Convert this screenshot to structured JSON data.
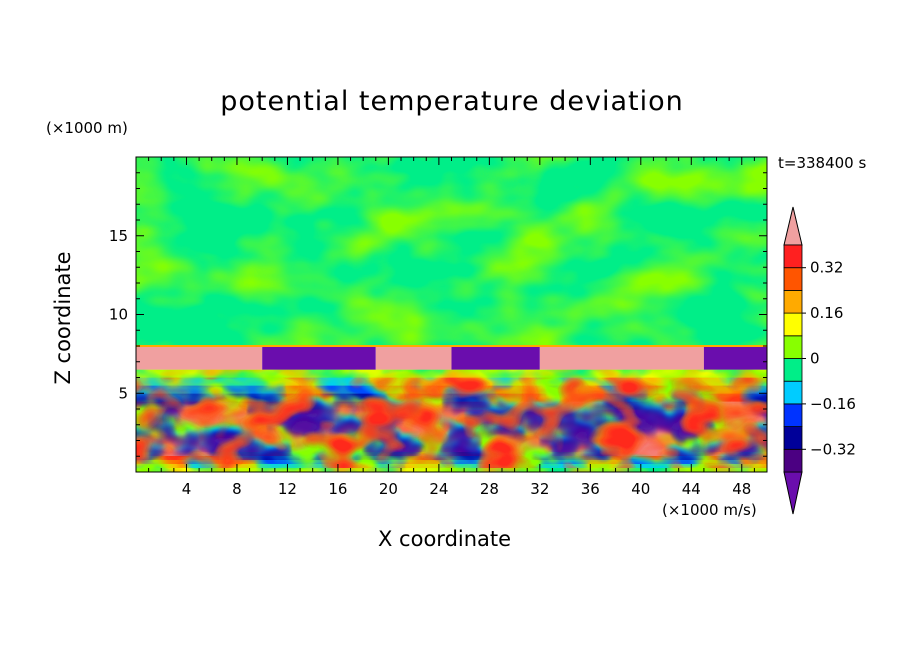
{
  "chart_data": {
    "type": "heatmap",
    "title": "potential temperature deviation",
    "xlabel": "X coordinate",
    "ylabel": "Z coordinate",
    "x_unit": "(×1000 m/s)",
    "y_unit": "(×1000 m)",
    "time_label": "t=338400 s",
    "xlim": [
      0,
      50
    ],
    "ylim": [
      0,
      20
    ],
    "x_ticks": [
      4,
      8,
      12,
      16,
      20,
      24,
      28,
      32,
      36,
      40,
      44,
      48
    ],
    "y_ticks": [
      5,
      10,
      15
    ],
    "x_minor_step": 1,
    "y_minor_step": 1,
    "colorbar": {
      "levels": [
        -0.4,
        -0.32,
        -0.24,
        -0.16,
        -0.08,
        0,
        0.08,
        0.16,
        0.24,
        0.32,
        0.4
      ],
      "labels": [
        "-0.32",
        "-0.16",
        "0",
        "0.16",
        "0.32"
      ],
      "label_values": [
        -0.32,
        -0.16,
        0,
        0.16,
        0.32
      ],
      "colors": [
        "#4b0082",
        "#000099",
        "#0033ff",
        "#00ccff",
        "#00ee88",
        "#88ff00",
        "#ffff00",
        "#ffaa00",
        "#ff5500",
        "#ff2020"
      ],
      "under_color": "#6a0dad",
      "over_color": "#f0a0a0"
    },
    "regions": {
      "upper_layer": {
        "z_range": [
          8,
          20
        ],
        "dominant_values": [
          0.02,
          -0.02
        ]
      },
      "inversion_layer": {
        "z_range": [
          6.5,
          8
        ],
        "segments": [
          {
            "x_range": [
              0,
              10
            ],
            "value": 0.45
          },
          {
            "x_range": [
              10,
              19
            ],
            "value": -0.45
          },
          {
            "x_range": [
              19,
              25
            ],
            "value": 0.45
          },
          {
            "x_range": [
              25,
              32
            ],
            "value": -0.45
          },
          {
            "x_range": [
              32,
              45
            ],
            "value": 0.45
          },
          {
            "x_range": [
              45,
              50
            ],
            "value": -0.45
          }
        ]
      },
      "lower_turbulent_layer": {
        "z_range": [
          0,
          6.5
        ],
        "value_range": [
          -0.45,
          0.45
        ]
      }
    }
  }
}
